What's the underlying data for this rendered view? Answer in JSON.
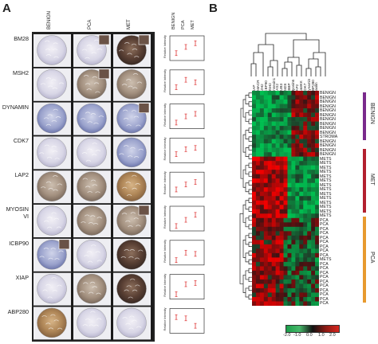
{
  "panels": {
    "a": "A",
    "b": "B"
  },
  "panel_a": {
    "columns": [
      "BENIGN",
      "PCA",
      "MET"
    ],
    "rows": [
      "BM28",
      "MSH2",
      "DYNAMIN",
      "CDK7",
      "LAP2",
      "MYOSIN VI",
      "ICBP90",
      "XIAP",
      "ABP280"
    ],
    "plot_header": [
      "BENIGN",
      "PCA",
      "MET"
    ],
    "ylabel": "Relative Intensity"
  },
  "panel_b": {
    "col_labels": [
      "XIAP",
      "AMACR",
      "EZH2",
      "ICBP90",
      "MSH2",
      "Annexin1",
      "CAS2",
      "BUB3",
      "BM28",
      "RBBP",
      "Myosin6",
      "LAP2",
      "CaMKK",
      "CDK7",
      "Dynamin",
      "ABP280",
      "Paxilin"
    ],
    "row_labels": [
      "BENIGN",
      "BENIGN",
      "BENIGN",
      "BENIGN",
      "BENIGN",
      "BENIGN",
      "BENIGN",
      "BENIGN",
      "BENIGN",
      "BENIGN",
      "STROMA",
      "BENIGN",
      "BENIGN",
      "BENIGN",
      "BENIGN",
      "METS",
      "METS",
      "METS",
      "METS",
      "METS",
      "METS",
      "METS",
      "METS",
      "METS",
      "METS",
      "METS",
      "METS",
      "METS",
      "METS",
      "PCA",
      "PCA",
      "PCA",
      "PCA",
      "PCA",
      "PCA",
      "PCA",
      "PCA",
      "PCA",
      "METS",
      "PCA",
      "PCA",
      "PCA",
      "PCA",
      "PCA",
      "PCA",
      "PCA",
      "PCA",
      "PCA",
      "PCA"
    ],
    "groups": [
      {
        "name": "BENIGN",
        "color": "#7a2a8c"
      },
      {
        "name": "MET",
        "color": "#b3202e"
      },
      {
        "name": "PCA",
        "color": "#e89a2e"
      }
    ],
    "scale_ticks": [
      "-2.0",
      "-1.0",
      "0.0",
      "1.0",
      "2.0"
    ]
  }
}
